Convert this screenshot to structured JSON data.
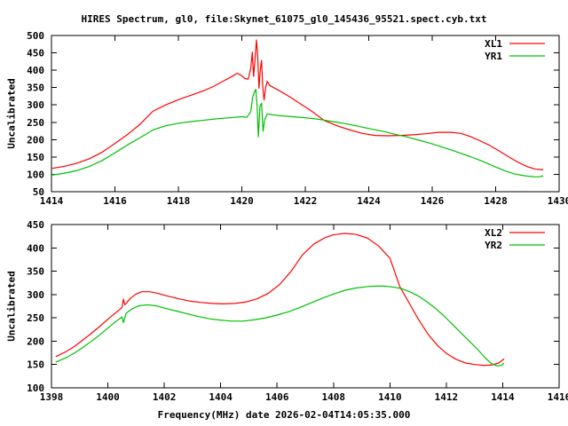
{
  "figure": {
    "title": "HIRES Spectrum, gl0, file:Skynet_61075_gl0_145436_95521.spect.cyb.txt",
    "background": "#ffffff",
    "text_color": "#000000",
    "axis_color": "#000000"
  },
  "chart_data": [
    {
      "type": "line",
      "title": "HIRES Spectrum, gl0, file:Skynet_61075_gl0_145436_95521.spect.cyb.txt",
      "ylabel": "Uncalibrated",
      "xlim": [
        1414,
        1430
      ],
      "ylim": [
        50,
        500
      ],
      "xticks": [
        1414,
        1416,
        1418,
        1420,
        1422,
        1424,
        1426,
        1428,
        1430
      ],
      "yticks": [
        50,
        100,
        150,
        200,
        250,
        300,
        350,
        400,
        450,
        500
      ],
      "grid": false,
      "legend": {
        "position": "top-right"
      },
      "series": [
        {
          "name": "XL1",
          "color": "#ff0000",
          "points": [
            [
              1414.0,
              117
            ],
            [
              1414.4,
              123
            ],
            [
              1414.8,
              132
            ],
            [
              1415.2,
              145
            ],
            [
              1415.6,
              164
            ],
            [
              1416.0,
              189
            ],
            [
              1416.4,
              215
            ],
            [
              1416.8,
              245
            ],
            [
              1417.2,
              282
            ],
            [
              1417.6,
              300
            ],
            [
              1418.0,
              315
            ],
            [
              1418.4,
              328
            ],
            [
              1418.8,
              341
            ],
            [
              1419.1,
              353
            ],
            [
              1419.4,
              368
            ],
            [
              1419.65,
              380
            ],
            [
              1419.85,
              391
            ],
            [
              1419.95,
              387
            ],
            [
              1420.1,
              376
            ],
            [
              1420.2,
              374
            ],
            [
              1420.28,
              405
            ],
            [
              1420.33,
              452
            ],
            [
              1420.37,
              382
            ],
            [
              1420.41,
              425
            ],
            [
              1420.46,
              487
            ],
            [
              1420.5,
              440
            ],
            [
              1420.54,
              348
            ],
            [
              1420.58,
              400
            ],
            [
              1420.62,
              428
            ],
            [
              1420.66,
              352
            ],
            [
              1420.7,
              314
            ],
            [
              1420.75,
              350
            ],
            [
              1420.8,
              368
            ],
            [
              1420.88,
              356
            ],
            [
              1421.0,
              350
            ],
            [
              1421.2,
              340
            ],
            [
              1421.5,
              324
            ],
            [
              1421.9,
              300
            ],
            [
              1422.2,
              282
            ],
            [
              1422.6,
              255
            ],
            [
              1423.0,
              240
            ],
            [
              1423.4,
              228
            ],
            [
              1423.8,
              218
            ],
            [
              1424.2,
              212
            ],
            [
              1424.6,
              211
            ],
            [
              1425.0,
              212
            ],
            [
              1425.4,
              214
            ],
            [
              1425.8,
              217
            ],
            [
              1426.2,
              221
            ],
            [
              1426.6,
              221
            ],
            [
              1426.9,
              218
            ],
            [
              1427.2,
              209
            ],
            [
              1427.5,
              197
            ],
            [
              1427.8,
              184
            ],
            [
              1428.1,
              168
            ],
            [
              1428.4,
              151
            ],
            [
              1428.7,
              135
            ],
            [
              1429.0,
              122
            ],
            [
              1429.25,
              115
            ],
            [
              1429.5,
              113
            ]
          ]
        },
        {
          "name": "YR1",
          "color": "#00c000",
          "points": [
            [
              1414.0,
              98
            ],
            [
              1414.4,
              103
            ],
            [
              1414.8,
              111
            ],
            [
              1415.2,
              123
            ],
            [
              1415.6,
              140
            ],
            [
              1416.0,
              162
            ],
            [
              1416.4,
              185
            ],
            [
              1416.8,
              206
            ],
            [
              1417.2,
              228
            ],
            [
              1417.6,
              240
            ],
            [
              1418.0,
              247
            ],
            [
              1418.4,
              252
            ],
            [
              1418.8,
              256
            ],
            [
              1419.2,
              260
            ],
            [
              1419.6,
              263
            ],
            [
              1420.0,
              266
            ],
            [
              1420.15,
              264
            ],
            [
              1420.28,
              280
            ],
            [
              1420.34,
              322
            ],
            [
              1420.4,
              338
            ],
            [
              1420.44,
              345
            ],
            [
              1420.48,
              300
            ],
            [
              1420.52,
              208
            ],
            [
              1420.57,
              295
            ],
            [
              1420.62,
              305
            ],
            [
              1420.67,
              224
            ],
            [
              1420.72,
              258
            ],
            [
              1420.8,
              274
            ],
            [
              1420.95,
              272
            ],
            [
              1421.2,
              269
            ],
            [
              1421.6,
              266
            ],
            [
              1422.0,
              263
            ],
            [
              1422.4,
              259
            ],
            [
              1422.8,
              253
            ],
            [
              1423.2,
              247
            ],
            [
              1423.6,
              240
            ],
            [
              1424.0,
              232
            ],
            [
              1424.4,
              225
            ],
            [
              1424.8,
              216
            ],
            [
              1425.2,
              208
            ],
            [
              1425.6,
              198
            ],
            [
              1426.0,
              188
            ],
            [
              1426.4,
              176
            ],
            [
              1426.8,
              164
            ],
            [
              1427.2,
              151
            ],
            [
              1427.6,
              137
            ],
            [
              1428.0,
              121
            ],
            [
              1428.3,
              110
            ],
            [
              1428.6,
              101
            ],
            [
              1428.9,
              96
            ],
            [
              1429.2,
              93
            ],
            [
              1429.4,
              93
            ],
            [
              1429.5,
              96
            ]
          ]
        }
      ]
    },
    {
      "type": "line",
      "xlabel": "Frequency(MHz) date 2026-02-04T14:05:35.000",
      "ylabel": "Uncalibrated",
      "xlim": [
        1398,
        1416
      ],
      "ylim": [
        100,
        450
      ],
      "xticks": [
        1398,
        1400,
        1402,
        1404,
        1406,
        1408,
        1410,
        1412,
        1414,
        1416
      ],
      "yticks": [
        100,
        150,
        200,
        250,
        300,
        350,
        400,
        450
      ],
      "grid": false,
      "legend": {
        "position": "top-right"
      },
      "series": [
        {
          "name": "XL2",
          "color": "#ff0000",
          "points": [
            [
              1398.15,
              167
            ],
            [
              1398.5,
              177
            ],
            [
              1398.8,
              188
            ],
            [
              1399.1,
              202
            ],
            [
              1399.4,
              216
            ],
            [
              1399.7,
              231
            ],
            [
              1400.0,
              247
            ],
            [
              1400.3,
              262
            ],
            [
              1400.5,
              272
            ],
            [
              1400.55,
              290
            ],
            [
              1400.6,
              278
            ],
            [
              1400.8,
              292
            ],
            [
              1401.0,
              301
            ],
            [
              1401.2,
              306
            ],
            [
              1401.5,
              306
            ],
            [
              1401.8,
              302
            ],
            [
              1402.1,
              297
            ],
            [
              1402.5,
              291
            ],
            [
              1402.9,
              286
            ],
            [
              1403.3,
              283
            ],
            [
              1403.7,
              281
            ],
            [
              1404.1,
              280
            ],
            [
              1404.5,
              281
            ],
            [
              1404.9,
              284
            ],
            [
              1405.3,
              291
            ],
            [
              1405.7,
              303
            ],
            [
              1406.1,
              322
            ],
            [
              1406.5,
              350
            ],
            [
              1406.9,
              385
            ],
            [
              1407.3,
              408
            ],
            [
              1407.7,
              422
            ],
            [
              1408.0,
              428
            ],
            [
              1408.4,
              431
            ],
            [
              1408.8,
              429
            ],
            [
              1409.2,
              421
            ],
            [
              1409.6,
              404
            ],
            [
              1410.0,
              378
            ],
            [
              1410.35,
              317
            ],
            [
              1410.7,
              280
            ],
            [
              1411.0,
              248
            ],
            [
              1411.35,
              215
            ],
            [
              1411.7,
              190
            ],
            [
              1412.0,
              174
            ],
            [
              1412.35,
              161
            ],
            [
              1412.7,
              153
            ],
            [
              1413.0,
              150
            ],
            [
              1413.35,
              148
            ],
            [
              1413.6,
              149
            ],
            [
              1413.85,
              153
            ],
            [
              1414.05,
              162
            ]
          ]
        },
        {
          "name": "YR2",
          "color": "#00c000",
          "points": [
            [
              1398.15,
              155
            ],
            [
              1398.5,
              164
            ],
            [
              1398.8,
              174
            ],
            [
              1399.1,
              186
            ],
            [
              1399.4,
              199
            ],
            [
              1399.7,
              213
            ],
            [
              1400.0,
              228
            ],
            [
              1400.3,
              243
            ],
            [
              1400.5,
              252
            ],
            [
              1400.55,
              240
            ],
            [
              1400.65,
              260
            ],
            [
              1400.85,
              269
            ],
            [
              1401.1,
              276
            ],
            [
              1401.4,
              278
            ],
            [
              1401.7,
              276
            ],
            [
              1402.0,
              271
            ],
            [
              1402.4,
              265
            ],
            [
              1402.8,
              259
            ],
            [
              1403.2,
              253
            ],
            [
              1403.6,
              248
            ],
            [
              1404.0,
              245
            ],
            [
              1404.4,
              243
            ],
            [
              1404.8,
              243
            ],
            [
              1405.2,
              246
            ],
            [
              1405.6,
              250
            ],
            [
              1406.0,
              256
            ],
            [
              1406.4,
              263
            ],
            [
              1406.8,
              272
            ],
            [
              1407.2,
              282
            ],
            [
              1407.6,
              292
            ],
            [
              1408.0,
              301
            ],
            [
              1408.4,
              309
            ],
            [
              1408.8,
              314
            ],
            [
              1409.2,
              317
            ],
            [
              1409.5,
              318
            ],
            [
              1409.8,
              318
            ],
            [
              1410.1,
              316
            ],
            [
              1410.4,
              313
            ],
            [
              1410.7,
              306
            ],
            [
              1411.0,
              297
            ],
            [
              1411.3,
              285
            ],
            [
              1411.6,
              271
            ],
            [
              1411.9,
              255
            ],
            [
              1412.2,
              237
            ],
            [
              1412.5,
              219
            ],
            [
              1412.8,
              201
            ],
            [
              1413.1,
              183
            ],
            [
              1413.4,
              163
            ],
            [
              1413.6,
              152
            ],
            [
              1413.8,
              147
            ],
            [
              1413.95,
              148
            ],
            [
              1414.05,
              153
            ]
          ]
        }
      ]
    }
  ]
}
